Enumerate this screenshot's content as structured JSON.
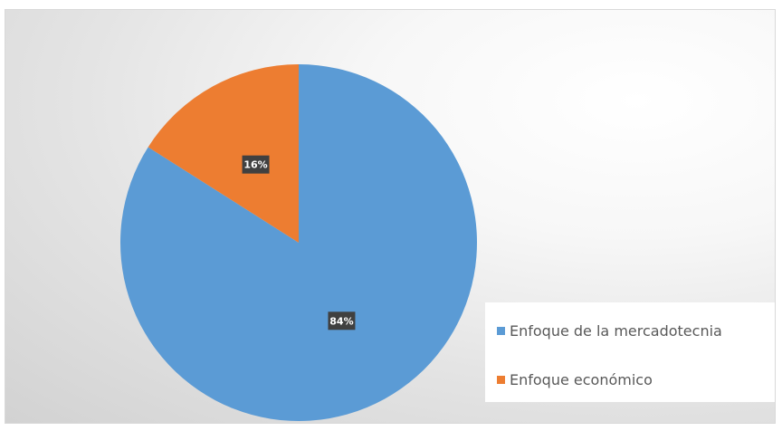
{
  "chart_data": {
    "type": "pie",
    "title": "",
    "categories": [
      "Enfoque de la mercadotecnia",
      "Enfoque económico"
    ],
    "values": [
      84,
      16
    ],
    "data_labels": [
      "84%",
      "16%"
    ],
    "colors": [
      "#5b9bd5",
      "#ed7d31"
    ],
    "start_angle": "12 o'clock",
    "direction": "clockwise",
    "legend_position": "bottom-right"
  },
  "legend": {
    "items": [
      {
        "label": "Enfoque de la mercadotecnia",
        "color": "#5b9bd5"
      },
      {
        "label": "Enfoque económico",
        "color": "#ed7d31"
      }
    ]
  }
}
